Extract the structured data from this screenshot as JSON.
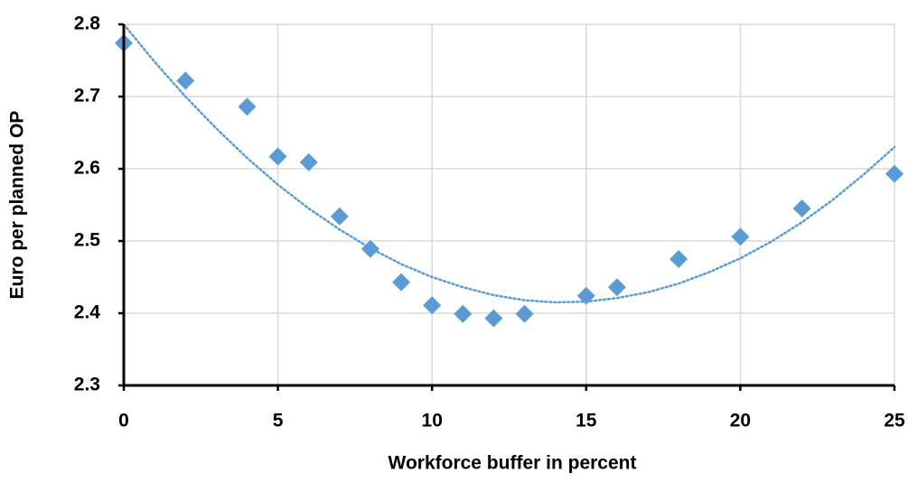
{
  "chart_data": {
    "type": "scatter",
    "xlabel": "Workforce buffer in percent",
    "ylabel": "Euro per planned OP",
    "series": [
      {
        "color": "#5b9bd5",
        "x": [
          0,
          2,
          4,
          5,
          6,
          7,
          8,
          9,
          10,
          11,
          12,
          13,
          15,
          16,
          18,
          20,
          22,
          25
        ],
        "values": [
          2.774,
          2.722,
          2.686,
          2.617,
          2.609,
          2.534,
          2.489,
          2.443,
          2.411,
          2.399,
          2.393,
          2.399,
          2.424,
          2.436,
          2.475,
          2.506,
          2.545,
          2.593
        ]
      }
    ],
    "trendline": {
      "color": "#5b9bd5",
      "x": [
        0,
        1,
        2,
        3,
        4,
        5,
        6,
        7,
        8,
        9,
        10,
        11,
        12,
        13,
        14,
        15,
        16,
        17,
        18,
        19,
        20,
        21,
        22,
        23,
        24,
        25
      ],
      "values": [
        2.8,
        2.748,
        2.7,
        2.656,
        2.615,
        2.578,
        2.545,
        2.516,
        2.49,
        2.468,
        2.45,
        2.436,
        2.425,
        2.418,
        2.415,
        2.416,
        2.421,
        2.429,
        2.441,
        2.457,
        2.476,
        2.499,
        2.526,
        2.557,
        2.592,
        2.63
      ]
    },
    "xlim": [
      0,
      25
    ],
    "xticks": [
      0,
      5,
      10,
      15,
      20,
      25
    ],
    "ylim": [
      2.3,
      2.8
    ],
    "yticks": [
      2.3,
      2.4,
      2.5,
      2.6,
      2.7,
      2.8
    ],
    "grid": true
  }
}
